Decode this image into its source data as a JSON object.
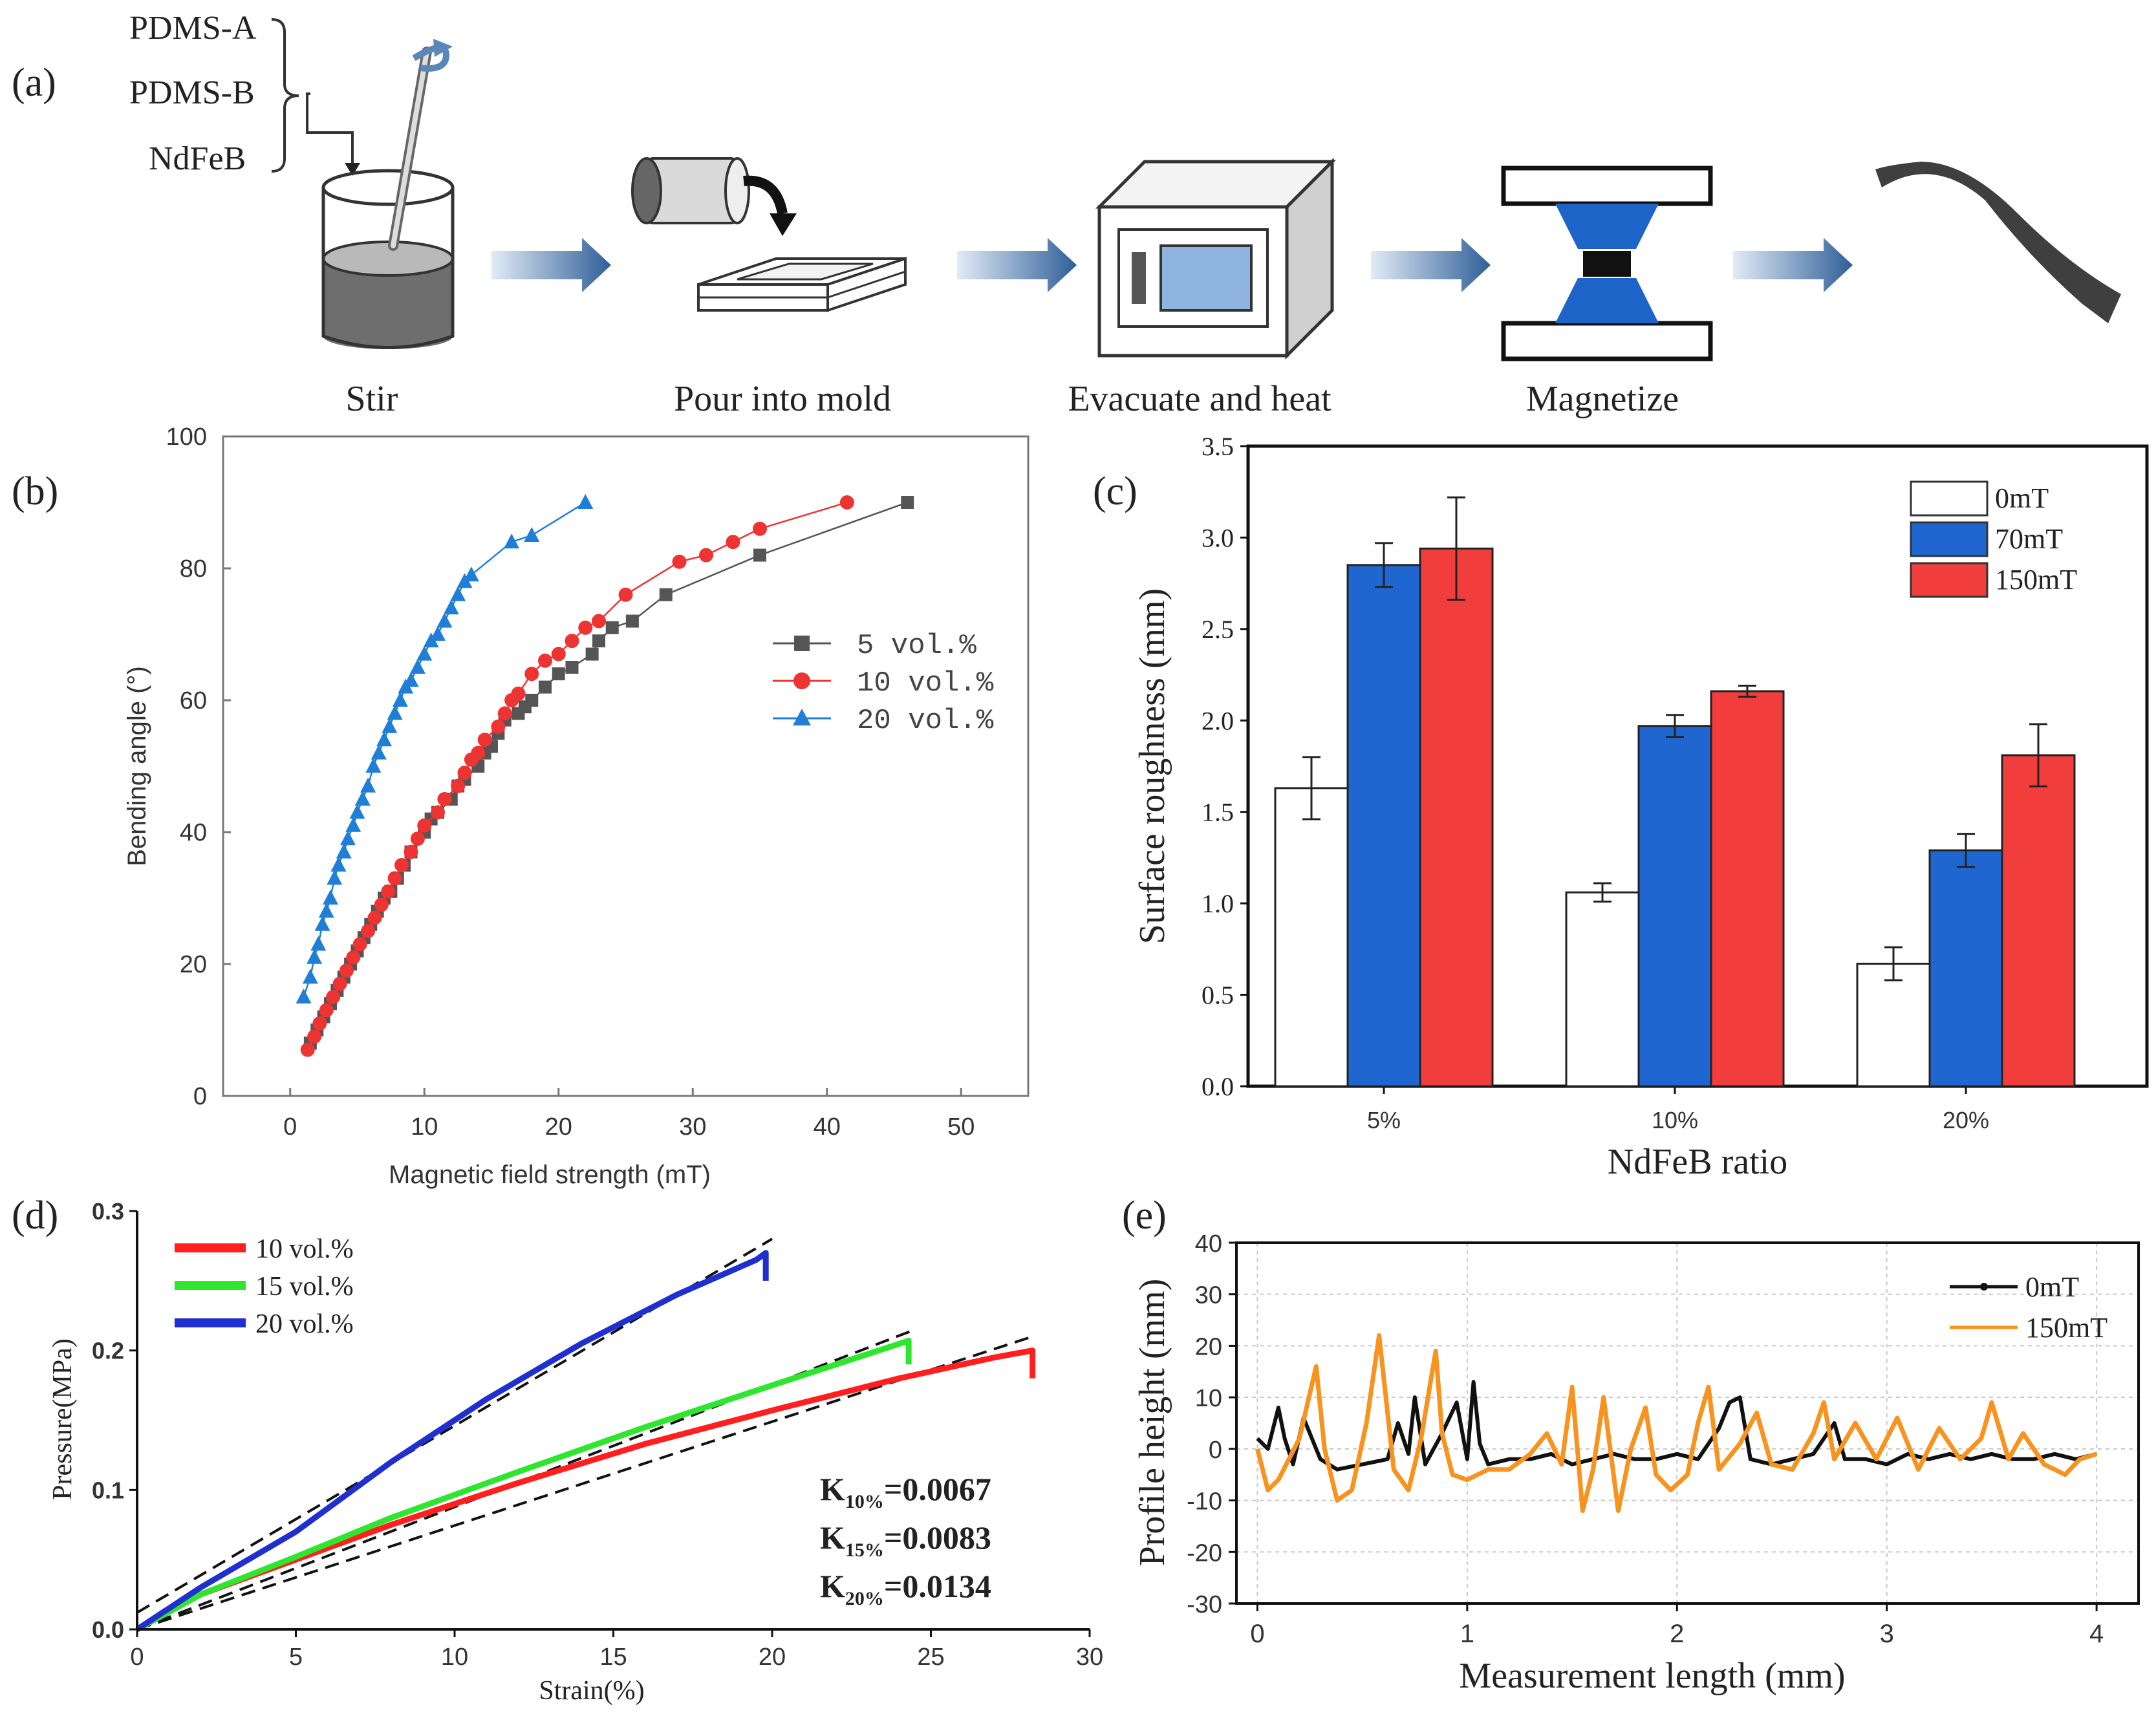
{
  "panel_a": {
    "label": "(a)",
    "ingredients": [
      "PDMS-A",
      "PDMS-B",
      "NdFeB"
    ],
    "steps": [
      "Stir",
      "Pour into mold",
      "Evacuate and heat",
      "Magnetize"
    ]
  },
  "chart_data": [
    {
      "id": "b",
      "panel_label": "(b)",
      "type": "line",
      "title": "",
      "xlabel": "Magnetic field strength (mT)",
      "ylabel": "Bending angle (°)",
      "xlim": [
        -5,
        55
      ],
      "ylim": [
        0,
        100
      ],
      "xticks": [
        0,
        10,
        20,
        30,
        40,
        50
      ],
      "yticks": [
        0,
        20,
        40,
        60,
        80,
        100
      ],
      "legend_position": "center-right",
      "series": [
        {
          "name": "5 vol.%",
          "color": "#555555",
          "marker": "square",
          "x": [
            1.5,
            2.0,
            2.5,
            3.0,
            3.5,
            4.0,
            4.5,
            5.0,
            5.5,
            6.0,
            6.5,
            7.0,
            7.5,
            8.0,
            8.5,
            9.0,
            10.0,
            10.5,
            11.0,
            12.0,
            12.5,
            13.0,
            14.0,
            14.5,
            15.0,
            15.5,
            16.0,
            17.0,
            17.5,
            18.0,
            19.0,
            20.0,
            21.0,
            22.5,
            23.0,
            24.0,
            25.5,
            28.0,
            35.0,
            46.0
          ],
          "y": [
            8,
            10,
            12,
            14,
            16,
            18,
            20,
            22,
            24,
            26,
            28,
            30,
            31,
            33,
            35,
            37,
            40,
            42,
            43,
            45,
            47,
            48,
            50,
            52,
            53,
            55,
            57,
            58,
            59,
            60,
            62,
            64,
            65,
            67,
            69,
            71,
            72,
            76,
            82,
            90
          ]
        },
        {
          "name": "10 vol.%",
          "color": "#ee3333",
          "marker": "circle",
          "x": [
            1.3,
            1.8,
            2.2,
            2.7,
            3.2,
            3.7,
            4.2,
            4.7,
            5.2,
            5.8,
            6.3,
            6.8,
            7.3,
            7.8,
            8.3,
            9.0,
            9.5,
            10.0,
            11.0,
            11.5,
            12.5,
            13.0,
            13.5,
            14.0,
            14.5,
            15.5,
            16.0,
            16.5,
            17.0,
            18.0,
            19.0,
            20.0,
            21.0,
            22.0,
            23.0,
            25.0,
            29.0,
            31.0,
            33.0,
            35.0,
            41.5
          ],
          "y": [
            7,
            9,
            11,
            13,
            15,
            17,
            19,
            21,
            23,
            25,
            27,
            29,
            31,
            33,
            35,
            37,
            39,
            41,
            43,
            45,
            47,
            49,
            51,
            52,
            54,
            56,
            58,
            60,
            61,
            64,
            66,
            67,
            69,
            71,
            72,
            76,
            81,
            82,
            84,
            86,
            90
          ]
        },
        {
          "name": "20 vol.%",
          "color": "#1f7fd6",
          "marker": "triangle",
          "x": [
            1.0,
            1.5,
            1.8,
            2.1,
            2.4,
            2.7,
            3.0,
            3.3,
            3.6,
            4.0,
            4.3,
            4.7,
            5.0,
            5.4,
            5.8,
            6.2,
            6.6,
            7.0,
            7.4,
            7.8,
            8.2,
            8.6,
            9.0,
            9.5,
            10.0,
            10.5,
            11.0,
            11.5,
            12.0,
            12.5,
            13.0,
            13.5,
            16.5,
            18.0,
            22.0
          ],
          "y": [
            15,
            18,
            21,
            23,
            26,
            28,
            30,
            33,
            35,
            37,
            39,
            41,
            43,
            45,
            47,
            50,
            52,
            54,
            56,
            58,
            60,
            62,
            63,
            65,
            67,
            69,
            70,
            72,
            74,
            76,
            78,
            79,
            84,
            85,
            90
          ]
        }
      ]
    },
    {
      "id": "c",
      "panel_label": "(c)",
      "type": "bar",
      "title": "",
      "xlabel": "NdFeB ratio",
      "ylabel": "Surface roughness (mm)",
      "ylim": [
        0,
        3.5
      ],
      "yticks": [
        "0.0",
        "0.5",
        "1.0",
        "1.5",
        "2.0",
        "2.5",
        "3.0",
        "3.5"
      ],
      "categories": [
        "5%",
        "10%",
        "20%"
      ],
      "legend_position": "top-right",
      "series": [
        {
          "name": "0mT",
          "color": "#ffffff",
          "values": [
            1.63,
            1.06,
            0.67
          ],
          "errors": [
            0.17,
            0.05,
            0.09
          ]
        },
        {
          "name": "70mT",
          "color": "#1f66d0",
          "values": [
            2.85,
            1.97,
            1.29
          ],
          "errors": [
            0.12,
            0.06,
            0.09
          ]
        },
        {
          "name": "150mT",
          "color": "#f23d3d",
          "values": [
            2.94,
            2.16,
            1.81
          ],
          "errors": [
            0.28,
            0.03,
            0.17
          ]
        }
      ]
    },
    {
      "id": "d",
      "panel_label": "(d)",
      "type": "line",
      "title": "",
      "xlabel": "Strain(%)",
      "ylabel": "Pressure(MPa)",
      "xlim": [
        0,
        30
      ],
      "ylim": [
        0,
        0.3
      ],
      "xticks": [
        0,
        5,
        10,
        15,
        20,
        25,
        30
      ],
      "yticks": [
        "0.0",
        "0.1",
        "0.2",
        "0.3"
      ],
      "legend_position": "top-left",
      "series": [
        {
          "name": "10 vol.%",
          "color": "#ff1f1f",
          "x": [
            0,
            2,
            5,
            8,
            12,
            16,
            20,
            24,
            27,
            28.2,
            28.2
          ],
          "y": [
            0,
            0.025,
            0.05,
            0.075,
            0.105,
            0.133,
            0.157,
            0.18,
            0.195,
            0.2,
            0.18
          ]
        },
        {
          "name": "15 vol.%",
          "color": "#2ee62e",
          "x": [
            0,
            2,
            5,
            8,
            12,
            16,
            20,
            24.3,
            24.3
          ],
          "y": [
            0,
            0.025,
            0.052,
            0.08,
            0.113,
            0.145,
            0.175,
            0.207,
            0.19
          ]
        },
        {
          "name": "20 vol.%",
          "color": "#1f2fd0",
          "x": [
            0,
            2,
            5,
            8,
            11,
            14,
            17,
            19.5,
            19.8,
            19.8
          ],
          "y": [
            0,
            0.03,
            0.07,
            0.12,
            0.165,
            0.205,
            0.24,
            0.265,
            0.27,
            0.25
          ]
        }
      ],
      "fit_lines": [
        {
          "name": "fit 10%",
          "x": [
            0,
            28.2
          ],
          "y": [
            0.0,
            0.21
          ]
        },
        {
          "name": "fit 15%",
          "x": [
            0,
            24.5
          ],
          "y": [
            0.0,
            0.215
          ]
        },
        {
          "name": "fit 20%",
          "x": [
            0,
            20
          ],
          "y": [
            0.012,
            0.28
          ]
        }
      ],
      "annotations": [
        {
          "main": "K",
          "sub": "10%",
          "tail": "=0.0067"
        },
        {
          "main": "K",
          "sub": "15%",
          "tail": "=0.0083"
        },
        {
          "main": "K",
          "sub": "20%",
          "tail": "=0.0134"
        }
      ]
    },
    {
      "id": "e",
      "panel_label": "(e)",
      "type": "line",
      "title": "",
      "xlabel": "Measurement length (mm)",
      "ylabel": "Profile height (mm)",
      "xlim": [
        -0.1,
        4.2
      ],
      "ylim": [
        -30,
        40
      ],
      "xticks": [
        0,
        1,
        2,
        3,
        4
      ],
      "yticks": [
        -30,
        -20,
        -10,
        0,
        10,
        20,
        30,
        40
      ],
      "grid": true,
      "legend_position": "top-right",
      "series": [
        {
          "name": "0mT",
          "color": "#111111",
          "x": [
            0,
            0.05,
            0.1,
            0.13,
            0.17,
            0.22,
            0.3,
            0.38,
            0.5,
            0.62,
            0.67,
            0.72,
            0.75,
            0.8,
            0.88,
            0.95,
            1.0,
            1.03,
            1.06,
            1.1,
            1.2,
            1.3,
            1.4,
            1.5,
            1.6,
            1.7,
            1.8,
            1.9,
            2.0,
            2.1,
            2.2,
            2.25,
            2.3,
            2.35,
            2.45,
            2.55,
            2.65,
            2.75,
            2.8,
            2.9,
            3.0,
            3.1,
            3.2,
            3.3,
            3.4,
            3.5,
            3.6,
            3.7,
            3.8,
            3.9,
            4.0
          ],
          "y": [
            2,
            0,
            8,
            2,
            -3,
            6,
            -2,
            -4,
            -3,
            -2,
            5,
            -1,
            10,
            -3,
            3,
            9,
            -2,
            13,
            1,
            -3,
            -2,
            -2,
            -1,
            -3,
            -2,
            -1,
            -2,
            -2,
            -1,
            -2,
            4,
            9,
            10,
            -2,
            -3,
            -2,
            -1,
            5,
            -2,
            -2,
            -3,
            -1,
            -2,
            -1,
            -2,
            -1,
            -2,
            -2,
            -1,
            -2,
            -1
          ]
        },
        {
          "name": "150mT",
          "color": "#f7931e",
          "x": [
            0,
            0.05,
            0.1,
            0.2,
            0.28,
            0.32,
            0.38,
            0.45,
            0.52,
            0.58,
            0.65,
            0.72,
            0.78,
            0.85,
            0.88,
            0.93,
            1.0,
            1.1,
            1.2,
            1.3,
            1.38,
            1.45,
            1.5,
            1.55,
            1.6,
            1.65,
            1.72,
            1.78,
            1.85,
            1.9,
            1.97,
            2.05,
            2.1,
            2.15,
            2.2,
            2.3,
            2.38,
            2.45,
            2.55,
            2.65,
            2.7,
            2.75,
            2.85,
            2.95,
            3.05,
            3.15,
            3.25,
            3.35,
            3.45,
            3.5,
            3.58,
            3.65,
            3.75,
            3.85,
            3.92,
            4.0
          ],
          "y": [
            0,
            -8,
            -6,
            2,
            16,
            0,
            -10,
            -8,
            5,
            22,
            -4,
            -8,
            2,
            19,
            3,
            -5,
            -6,
            -4,
            -4,
            -1,
            3,
            -3,
            12,
            -12,
            -4,
            10,
            -12,
            0,
            8,
            -5,
            -8,
            -5,
            5,
            12,
            -4,
            1,
            7,
            -3,
            -4,
            3,
            9,
            -2,
            5,
            -2,
            6,
            -4,
            4,
            -2,
            2,
            9,
            -2,
            3,
            -3,
            -5,
            -2,
            -1
          ]
        }
      ]
    }
  ]
}
